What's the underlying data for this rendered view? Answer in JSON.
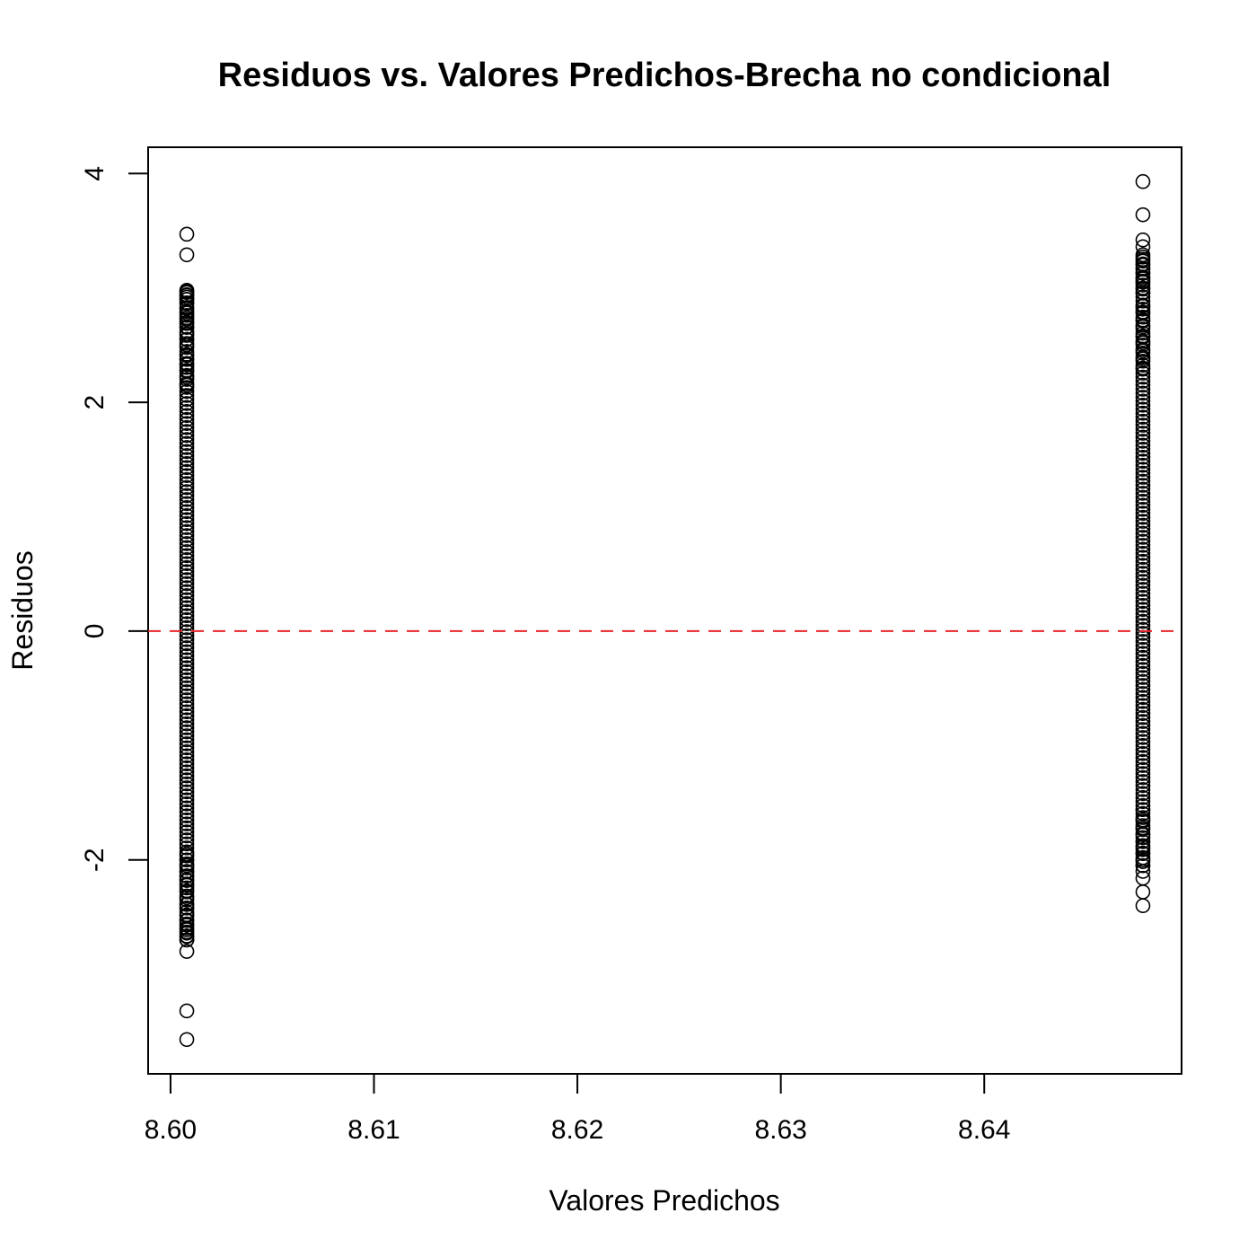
{
  "chart_data": {
    "type": "scatter",
    "title": "Residuos vs. Valores Predichos-Brecha no condicional",
    "xlabel": "Valores Predichos",
    "ylabel": "Residuos",
    "xlim": [
      8.5989,
      8.6497
    ],
    "ylim": [
      -3.87,
      4.23
    ],
    "x_ticks": [
      8.6,
      8.61,
      8.62,
      8.63,
      8.64
    ],
    "x_tick_labels": [
      "8.60",
      "8.61",
      "8.62",
      "8.63",
      "8.64"
    ],
    "y_ticks": [
      -2,
      0,
      2,
      4
    ],
    "y_tick_labels": [
      "-2",
      "0",
      "2",
      "4"
    ],
    "reference_line": {
      "y": 0,
      "color": "#e8262b",
      "style": "dashed"
    },
    "grid": false,
    "series": [
      {
        "x": 8.6008,
        "outliers": [
          3.47,
          3.29,
          -2.8,
          -3.32,
          -3.57
        ],
        "dense_range": [
          -2.7,
          2.98
        ],
        "sparse_values": [
          2.98,
          2.96,
          2.94,
          2.92,
          2.9,
          2.87,
          2.82,
          2.78,
          2.74,
          2.7,
          2.66,
          2.6,
          2.55,
          2.5,
          2.42,
          2.38,
          2.33,
          2.28,
          2.22,
          2.15,
          -1.95,
          -2.0,
          -2.05,
          -2.1,
          -2.14,
          -2.18,
          -2.22,
          -2.27,
          -2.33,
          -2.39,
          -2.42,
          -2.48,
          -2.53,
          -2.57,
          -2.61,
          -2.64,
          -2.67,
          -2.7
        ]
      },
      {
        "x": 8.6478,
        "outliers": [
          3.93,
          3.64,
          3.42,
          3.36
        ],
        "dense_range": [
          -2.05,
          3.3
        ],
        "sparse_values": [
          3.29,
          3.25,
          3.21,
          3.17,
          3.13,
          3.08,
          3.05,
          3.0,
          2.96,
          2.84,
          2.79,
          2.72,
          2.66,
          2.58,
          2.52,
          2.45,
          2.38,
          2.3,
          -1.56,
          -1.65,
          -1.72,
          -1.78,
          -1.84,
          -1.89,
          -1.94,
          -2.0,
          -2.05,
          -2.1,
          -2.16,
          -2.28,
          -2.4
        ]
      }
    ]
  }
}
